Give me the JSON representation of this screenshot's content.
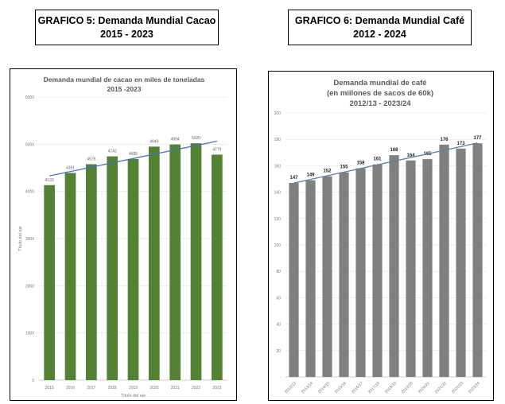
{
  "headers": [
    {
      "line1": "GRAFICO 5: Demanda Mundial Cacao",
      "line2": "2015 - 2023"
    },
    {
      "line1": "GRAFICO 6: Demanda Mundial Café",
      "line2": "2012 - 2024"
    }
  ],
  "chart_data": [
    {
      "type": "bar",
      "title": [
        "Demanda mundial de cacao en miles de toneladas",
        "2015 -2023"
      ],
      "categories": [
        "2015",
        "2016",
        "2017",
        "2018",
        "2019",
        "2020",
        "2021",
        "2022",
        "2023"
      ],
      "values": [
        4133,
        4391,
        4576,
        4742,
        4685,
        4949,
        4994,
        5020,
        4779
      ],
      "data_labels": [
        "4133",
        "4391",
        "4576",
        "4742",
        "4685",
        "4949",
        "4994",
        "5020",
        "4779"
      ],
      "xlabel": "Título del eje",
      "ylabel": "Título del eje",
      "ylim": [
        0,
        6000
      ],
      "yticks": [
        0,
        1000,
        2000,
        3000,
        4000,
        5000,
        6000
      ],
      "grid": true,
      "bar_color": "#548235",
      "trendline": {
        "type": "linear",
        "color": "#4472C4"
      }
    },
    {
      "type": "bar",
      "title": [
        "Demanda mundial de café",
        "(en miilones de sacos de 60k)",
        "2012/13 - 2023/24"
      ],
      "categories": [
        "2012/13",
        "2013/14",
        "2014/15",
        "2015/16",
        "2016/17",
        "2017/18",
        "2018/19",
        "2019/20",
        "2020/21",
        "2021/22",
        "2022/23",
        "2023/24"
      ],
      "values": [
        147,
        149,
        152,
        155,
        158,
        161,
        168,
        164,
        165,
        176,
        173,
        177
      ],
      "data_labels": [
        "147",
        "149",
        "152",
        "155",
        "158",
        "161",
        "168",
        "164",
        "165",
        "176",
        "173",
        "177"
      ],
      "xlabel": "",
      "ylabel": "",
      "ylim": [
        0,
        200
      ],
      "yticks": [
        "-",
        "20",
        "40",
        "60",
        "80",
        "100",
        "120",
        "140",
        "160",
        "180",
        "200"
      ],
      "grid": true,
      "bar_color": "#808080",
      "trendline": {
        "type": "linear",
        "color": "#5B7FA6"
      }
    }
  ]
}
